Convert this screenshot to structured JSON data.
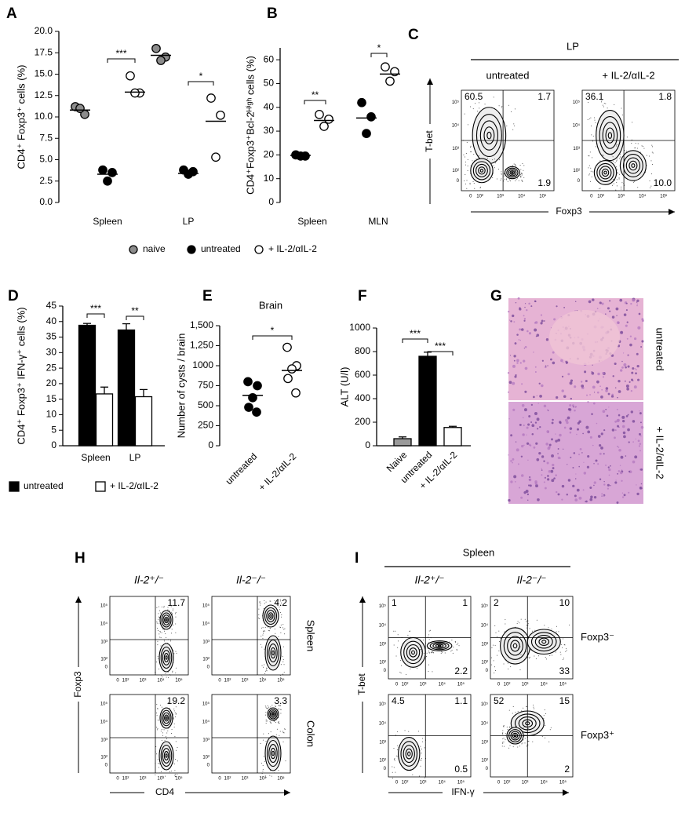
{
  "chart_data": [
    {
      "panel": "A",
      "type": "dot",
      "y_label": "CD4⁺ Foxp3⁺ cells (%)",
      "categories": [
        "Spleen",
        "LP"
      ],
      "ylim": [
        0,
        20
      ],
      "yticks": [
        {
          "value": 0,
          "label": "0.0"
        },
        2.5,
        {
          "value": 5,
          "label": "5.0"
        },
        7.5,
        {
          "value": 10,
          "label": "10.0"
        },
        12.5,
        {
          "value": 15,
          "label": "15.0"
        },
        17.5,
        {
          "value": 20,
          "label": "20.0"
        }
      ],
      "series": [
        {
          "name": "naive",
          "color": "#8c8c8c",
          "values": [
            [
              11.2,
              10.3,
              11.0
            ],
            [
              18.0,
              17.0,
              16.6
            ]
          ],
          "means": [
            10.8,
            17.2
          ]
        },
        {
          "name": "untreated",
          "color": "#000000",
          "values": [
            [
              3.8,
              3.5,
              2.5
            ],
            [
              3.8,
              3.6,
              3.3
            ]
          ],
          "means": [
            3.3,
            3.4
          ]
        },
        {
          "name": "+ IL-2/αIL-2",
          "color": "#ffffff",
          "values": [
            [
              14.8,
              12.8,
              12.8
            ],
            [
              12.2,
              10.2,
              5.3
            ]
          ],
          "means": [
            12.9,
            9.5
          ]
        }
      ],
      "significance": [
        "***",
        "*"
      ]
    },
    {
      "panel": "B",
      "type": "dot",
      "y_label": "CD4⁺Foxp3⁺Bcl-2ᴴⁱᵍʰ cells (%)",
      "categories": [
        "Spleen",
        "MLN"
      ],
      "ylim": [
        0,
        65
      ],
      "yticks": [
        0,
        10,
        20,
        30,
        40,
        50,
        60
      ],
      "series": [
        {
          "color": "#000000",
          "values": [
            [
              20,
              19.5,
              19.5
            ],
            [
              42,
              36,
              29
            ]
          ],
          "means": [
            19.8,
            35.5
          ]
        },
        {
          "color": "#ffffff",
          "values": [
            [
              37,
              35,
              32
            ],
            [
              57,
              55,
              51
            ]
          ],
          "means": [
            34.5,
            54
          ]
        }
      ],
      "significance": [
        "**",
        "*"
      ]
    },
    {
      "panel": "D",
      "type": "bar",
      "y_label": "CD4⁺ Foxp3⁺ IFN-γ⁺ cells (%)",
      "categories": [
        "Spleen",
        "LP"
      ],
      "ylim": [
        0,
        45
      ],
      "yticks": [
        0,
        5,
        10,
        15,
        20,
        25,
        30,
        35,
        40,
        45
      ],
      "series": [
        {
          "name": "untreated",
          "color": "#000000",
          "values": [
            38.8,
            37.3
          ],
          "errors": [
            0.6,
            2.0
          ]
        },
        {
          "name": "+ IL-2/αIL-2",
          "color": "#ffffff",
          "values": [
            16.7,
            15.8
          ],
          "errors": [
            2.2,
            2.3
          ]
        }
      ],
      "significance": [
        "***",
        "**"
      ]
    },
    {
      "panel": "E",
      "type": "dot",
      "title": "Brain",
      "y_label": "Number of cysts / brain",
      "categories": [
        "untreated",
        "+ IL-2/αIL-2"
      ],
      "ylim": [
        0,
        1500
      ],
      "yticks": [
        0,
        250,
        500,
        750,
        1000,
        {
          "value": 1250,
          "label": "1,250"
        },
        {
          "value": 1500,
          "label": "1,500"
        }
      ],
      "values": [
        [
          800,
          750,
          600,
          480,
          420
        ],
        [
          1230,
          1000,
          960,
          840,
          660
        ]
      ],
      "means": [
        630,
        940
      ],
      "colors": [
        "#000000",
        "#ffffff"
      ],
      "significance": [
        "*"
      ]
    },
    {
      "panel": "F",
      "type": "bar",
      "y_label": "ALT (U/l)",
      "categories": [
        "Naive",
        "untreated",
        "+ IL-2/αIL-2"
      ],
      "ylim": [
        0,
        1000
      ],
      "yticks": [
        0,
        200,
        400,
        600,
        800,
        1000
      ],
      "values": [
        60,
        760,
        155
      ],
      "errors": [
        15,
        35,
        10
      ],
      "colors": [
        "#9a9a9a",
        "#000000",
        "#ffffff"
      ],
      "significance": [
        "***",
        "***"
      ]
    }
  ],
  "histology": {
    "panel": "G",
    "labels": [
      "untreated",
      "+ IL-2/αIL-2"
    ]
  },
  "flow_ticks": [
    "0",
    "10²",
    "10³",
    "10⁴",
    "10⁵"
  ],
  "flow": [
    {
      "panel": "C",
      "header": "LP",
      "columns": [
        "untreated",
        "+ IL-2/αIL-2"
      ],
      "y_label": "T-bet",
      "x_label": "Foxp3",
      "plots": [
        [
          {
            "top_left": "60.5",
            "top_right": "1.7",
            "bottom_right": "1.9"
          },
          {
            "top_left": "36.1",
            "top_right": "1.8",
            "bottom_right": "10.0"
          }
        ]
      ]
    },
    {
      "panel": "H",
      "columns": [
        "Il-2⁺/⁻",
        "Il-2⁻/⁻"
      ],
      "rows": [
        "Spleen",
        "Colon"
      ],
      "y_label": "Foxp3",
      "x_label": "CD4",
      "plots": [
        [
          {
            "top_right": "11.7"
          },
          {
            "top_right": "4.2"
          }
        ],
        [
          {
            "top_right": "19.2"
          },
          {
            "top_right": "3.3"
          }
        ]
      ]
    },
    {
      "panel": "I",
      "header": "Spleen",
      "columns": [
        "Il-2⁺/⁻",
        "Il-2⁻/⁻"
      ],
      "rows": [
        "Foxp3⁻",
        "Foxp3⁺"
      ],
      "y_label": "T-bet",
      "x_label": "IFN-γ",
      "plots": [
        [
          {
            "top_left": "1",
            "top_right": "1",
            "bottom_right": "2.2"
          },
          {
            "top_left": "2",
            "top_right": "10",
            "bottom_right": "33"
          }
        ],
        [
          {
            "top_left": "4.5",
            "top_right": "1.1",
            "bottom_right": "0.5"
          },
          {
            "top_left": "52",
            "top_right": "15",
            "bottom_right": "2"
          }
        ]
      ]
    }
  ]
}
